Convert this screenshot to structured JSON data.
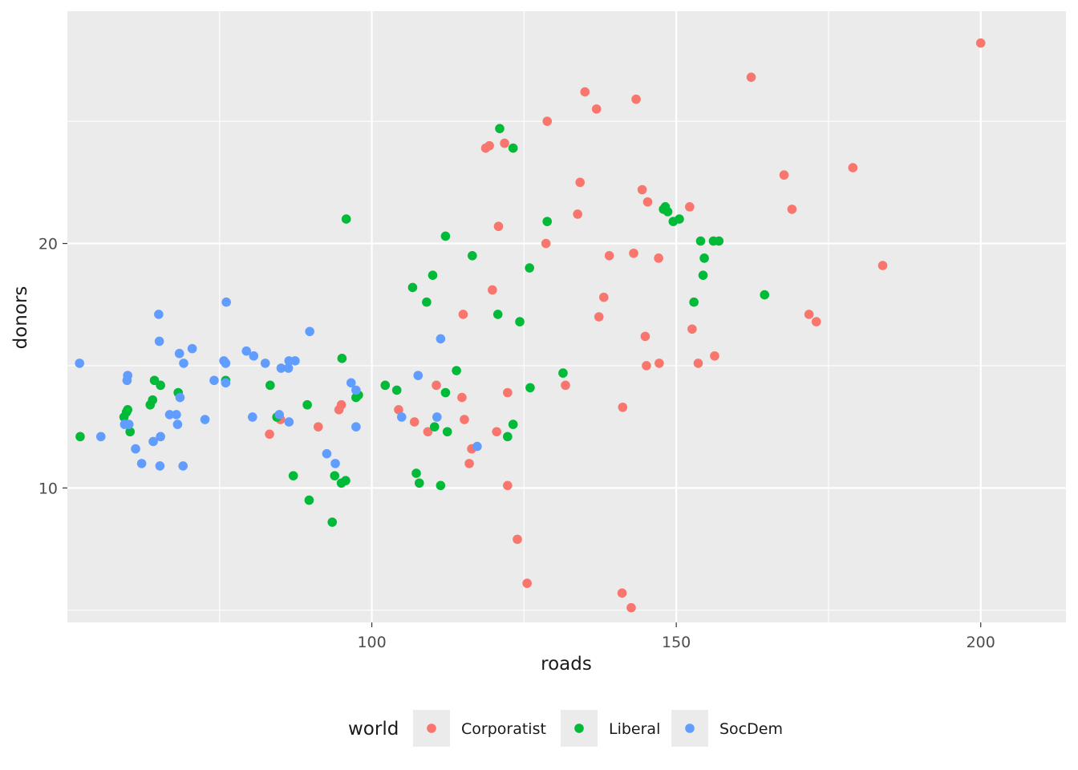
{
  "chart_data": {
    "type": "scatter",
    "xlabel": "roads",
    "ylabel": "donors",
    "xlim": [
      50,
      214
    ],
    "ylim": [
      4.5,
      29.5
    ],
    "x_ticks_major": [
      100,
      150,
      200
    ],
    "x_ticks_minor": [
      75,
      125,
      175
    ],
    "y_ticks_major": [
      10,
      20
    ],
    "y_ticks_minor": [
      5,
      15,
      25
    ],
    "grid": true,
    "legend": {
      "title": "world",
      "position": "bottom",
      "entries": [
        {
          "name": "Corporatist",
          "color": "#F8766D"
        },
        {
          "name": "Liberal",
          "color": "#00BA38"
        },
        {
          "name": "SocDem",
          "color": "#619CFF"
        }
      ]
    },
    "series": [
      {
        "name": "Corporatist",
        "color": "#F8766D",
        "points": [
          [
            200,
            28.2
          ],
          [
            162.3,
            26.8
          ],
          [
            135,
            26.2
          ],
          [
            143.4,
            25.9
          ],
          [
            136.9,
            25.5
          ],
          [
            128.8,
            25.0
          ],
          [
            121.8,
            24.1
          ],
          [
            118.7,
            23.9
          ],
          [
            119.3,
            24.0
          ],
          [
            179,
            23.1
          ],
          [
            167.7,
            22.8
          ],
          [
            134.2,
            22.5
          ],
          [
            144.4,
            22.2
          ],
          [
            145.3,
            21.7
          ],
          [
            152.2,
            21.5
          ],
          [
            169,
            21.4
          ],
          [
            133.8,
            21.2
          ],
          [
            120.8,
            20.7
          ],
          [
            128.6,
            20.0
          ],
          [
            139,
            19.5
          ],
          [
            143,
            19.6
          ],
          [
            147.1,
            19.4
          ],
          [
            183.9,
            19.1
          ],
          [
            119.8,
            18.1
          ],
          [
            138.1,
            17.8
          ],
          [
            115,
            17.1
          ],
          [
            137.3,
            17.0
          ],
          [
            171.8,
            17.1
          ],
          [
            173,
            16.8
          ],
          [
            152.6,
            16.5
          ],
          [
            144.9,
            16.2
          ],
          [
            156.3,
            15.4
          ],
          [
            153.6,
            15.1
          ],
          [
            147.2,
            15.1
          ],
          [
            145.1,
            15.0
          ],
          [
            110.6,
            14.2
          ],
          [
            131.8,
            14.2
          ],
          [
            122.3,
            13.9
          ],
          [
            114.8,
            13.7
          ],
          [
            95,
            13.4
          ],
          [
            94.6,
            13.2
          ],
          [
            104.4,
            13.2
          ],
          [
            141.2,
            13.3
          ],
          [
            115.2,
            12.8
          ],
          [
            85,
            12.8
          ],
          [
            107,
            12.7
          ],
          [
            91.2,
            12.5
          ],
          [
            109.2,
            12.3
          ],
          [
            120.5,
            12.3
          ],
          [
            83.2,
            12.2
          ],
          [
            116.4,
            11.6
          ],
          [
            116,
            11.0
          ],
          [
            122.3,
            10.1
          ],
          [
            123.9,
            7.9
          ],
          [
            125.5,
            6.1
          ],
          [
            141.1,
            5.7
          ],
          [
            142.6,
            5.1
          ]
        ]
      },
      {
        "name": "Liberal",
        "color": "#00BA38",
        "points": [
          [
            121,
            24.7
          ],
          [
            123.2,
            23.9
          ],
          [
            95.8,
            21.0
          ],
          [
            148.2,
            21.5
          ],
          [
            148.6,
            21.3
          ],
          [
            147.9,
            21.4
          ],
          [
            150.5,
            21.0
          ],
          [
            149.5,
            20.9
          ],
          [
            128.8,
            20.9
          ],
          [
            112.1,
            20.3
          ],
          [
            154,
            20.1
          ],
          [
            156.1,
            20.1
          ],
          [
            157,
            20.1
          ],
          [
            116.5,
            19.5
          ],
          [
            154.6,
            19.4
          ],
          [
            125.9,
            19.0
          ],
          [
            110,
            18.7
          ],
          [
            154.4,
            18.7
          ],
          [
            106.7,
            18.2
          ],
          [
            164.5,
            17.9
          ],
          [
            109,
            17.6
          ],
          [
            152.9,
            17.6
          ],
          [
            120.7,
            17.1
          ],
          [
            124.3,
            16.8
          ],
          [
            95.1,
            15.3
          ],
          [
            113.9,
            14.8
          ],
          [
            131.4,
            14.7
          ],
          [
            64.3,
            14.4
          ],
          [
            76,
            14.4
          ],
          [
            65.3,
            14.2
          ],
          [
            83.3,
            14.2
          ],
          [
            102.2,
            14.2
          ],
          [
            126,
            14.1
          ],
          [
            104.1,
            14.0
          ],
          [
            112.1,
            13.9
          ],
          [
            68.2,
            13.9
          ],
          [
            97.8,
            13.8
          ],
          [
            97.4,
            13.7
          ],
          [
            64,
            13.6
          ],
          [
            63.6,
            13.4
          ],
          [
            89.4,
            13.4
          ],
          [
            59.9,
            13.2
          ],
          [
            59.7,
            13.1
          ],
          [
            59.3,
            12.9
          ],
          [
            84.4,
            12.9
          ],
          [
            123.2,
            12.6
          ],
          [
            110.3,
            12.5
          ],
          [
            112.4,
            12.3
          ],
          [
            60.3,
            12.3
          ],
          [
            52.1,
            12.1
          ],
          [
            122.3,
            12.1
          ],
          [
            107.3,
            10.6
          ],
          [
            87.1,
            10.5
          ],
          [
            93.9,
            10.5
          ],
          [
            95.7,
            10.3
          ],
          [
            95,
            10.2
          ],
          [
            107.8,
            10.2
          ],
          [
            111.3,
            10.1
          ],
          [
            89.7,
            9.5
          ],
          [
            93.5,
            8.6
          ]
        ]
      },
      {
        "name": "SocDem",
        "color": "#619CFF",
        "points": [
          [
            76.1,
            17.6
          ],
          [
            65,
            17.1
          ],
          [
            89.8,
            16.4
          ],
          [
            111.3,
            16.1
          ],
          [
            65.1,
            16.0
          ],
          [
            70.5,
            15.7
          ],
          [
            68.4,
            15.5
          ],
          [
            79.4,
            15.6
          ],
          [
            80.6,
            15.4
          ],
          [
            75.7,
            15.2
          ],
          [
            76,
            15.1
          ],
          [
            82.5,
            15.1
          ],
          [
            86.4,
            15.2
          ],
          [
            87.4,
            15.2
          ],
          [
            85.1,
            14.9
          ],
          [
            86.3,
            14.9
          ],
          [
            69.1,
            15.1
          ],
          [
            52,
            15.1
          ],
          [
            59.9,
            14.6
          ],
          [
            59.8,
            14.4
          ],
          [
            74.1,
            14.4
          ],
          [
            76,
            14.3
          ],
          [
            96.6,
            14.3
          ],
          [
            97.4,
            14.0
          ],
          [
            107.6,
            14.6
          ],
          [
            68.5,
            13.7
          ],
          [
            67.9,
            13.0
          ],
          [
            66.8,
            13.0
          ],
          [
            84.8,
            13.0
          ],
          [
            80.4,
            12.9
          ],
          [
            104.9,
            12.9
          ],
          [
            110.7,
            12.9
          ],
          [
            72.6,
            12.8
          ],
          [
            86.4,
            12.7
          ],
          [
            59.4,
            12.6
          ],
          [
            60.1,
            12.6
          ],
          [
            68.1,
            12.6
          ],
          [
            97.4,
            12.5
          ],
          [
            65.3,
            12.1
          ],
          [
            55.5,
            12.1
          ],
          [
            64.1,
            11.9
          ],
          [
            117.3,
            11.7
          ],
          [
            61.2,
            11.6
          ],
          [
            92.6,
            11.4
          ],
          [
            94,
            11.0
          ],
          [
            62.2,
            11.0
          ],
          [
            65.2,
            10.9
          ],
          [
            69,
            10.9
          ]
        ]
      }
    ]
  }
}
